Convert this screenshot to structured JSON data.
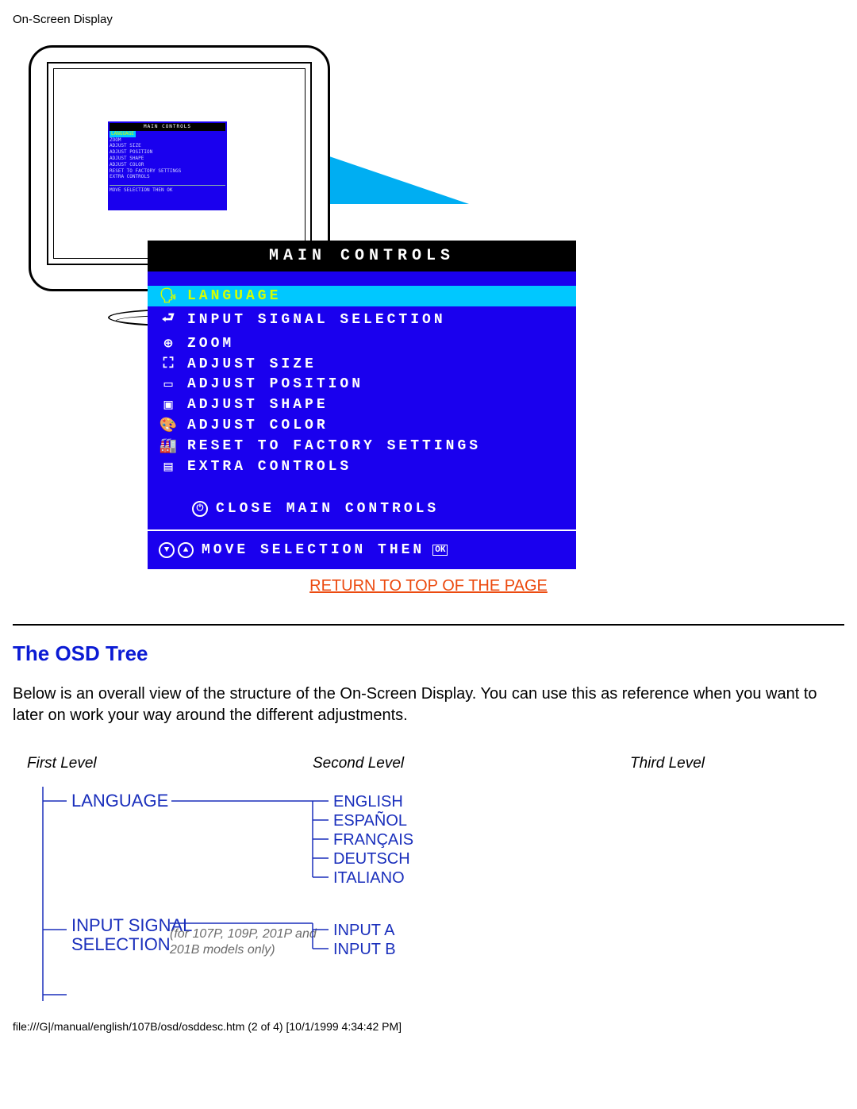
{
  "header": {
    "title": "On-Screen Display"
  },
  "osd": {
    "title": "MAIN CONTROLS",
    "bg_color": "#1a00ee",
    "title_bg": "#000000",
    "selected_bg": "#00c8ff",
    "selected_fg": "#d4ff00",
    "text_color": "#ffffff",
    "items": [
      {
        "icon": "🗣",
        "label": "LANGUAGE",
        "selected": true
      },
      {
        "icon": "⮐",
        "label": "INPUT SIGNAL SELECTION",
        "selected": false
      },
      {
        "icon": "⊕",
        "label": "ZOOM",
        "selected": false
      },
      {
        "icon": "⛶",
        "label": "ADJUST SIZE",
        "selected": false
      },
      {
        "icon": "▭",
        "label": "ADJUST POSITION",
        "selected": false
      },
      {
        "icon": "▣",
        "label": "ADJUST SHAPE",
        "selected": false
      },
      {
        "icon": "🎨",
        "label": "ADJUST COLOR",
        "selected": false
      },
      {
        "icon": "🏭",
        "label": "RESET TO FACTORY SETTINGS",
        "selected": false
      },
      {
        "icon": "▤",
        "label": "EXTRA CONTROLS",
        "selected": false
      }
    ],
    "close_icon": "⏻",
    "close_label": "CLOSE MAIN CONTROLS",
    "footer_icons": "⬇⬆",
    "footer_label": "MOVE SELECTION THEN",
    "footer_ok": "OK"
  },
  "return_link": {
    "label": "RETURN TO TOP OF THE PAGE"
  },
  "section": {
    "heading": "The OSD Tree",
    "paragraph": "Below is an overall view of the structure of the On-Screen Display. You can use this as reference when you want to later on work your way around the different adjustments."
  },
  "tree": {
    "headers": {
      "first": "First Level",
      "second": "Second Level",
      "third": "Third Level"
    },
    "font_family": "Arial, sans-serif",
    "line_color": "#1a2fbc",
    "node_color": "#1a2fbc",
    "note_color": "#6b6b6b",
    "fontsize_level1": 22,
    "fontsize_level2": 20,
    "fontsize_note": 16,
    "groups": [
      {
        "label": "LANGUAGE",
        "note": "",
        "children": [
          "ENGLISH",
          "ESPAÑOL",
          "FRANÇAIS",
          "DEUTSCH",
          "ITALIANO"
        ]
      },
      {
        "label": "INPUT SIGNAL SELECTION",
        "label_lines": [
          "INPUT SIGNAL",
          "SELECTION"
        ],
        "note": "(for 107P, 109P, 201P and 201B models only)",
        "children": [
          "INPUT A",
          "INPUT B"
        ]
      }
    ]
  },
  "footer": {
    "path": "file:///G|/manual/english/107B/osd/osddesc.htm (2 of 4) [10/1/1999 4:34:42 PM]"
  }
}
